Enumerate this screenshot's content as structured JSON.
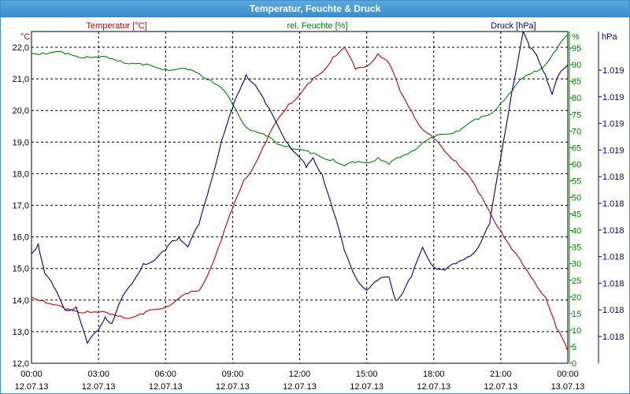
{
  "window": {
    "title": "Temperatur, Feuchte & Druck"
  },
  "chart_data": {
    "type": "line",
    "title": "Temperatur, Feuchte & Druck",
    "grid": true,
    "x_ticks": [
      {
        "time": "00:00",
        "date": "12.07.13"
      },
      {
        "time": "03:00",
        "date": "12.07.13"
      },
      {
        "time": "06:00",
        "date": "12.07.13"
      },
      {
        "time": "09:00",
        "date": "12.07.13"
      },
      {
        "time": "12:00",
        "date": "12.07.13"
      },
      {
        "time": "15:00",
        "date": "12.07.13"
      },
      {
        "time": "18:00",
        "date": "12.07.13"
      },
      {
        "time": "21:00",
        "date": "12.07.13"
      },
      {
        "time": "00:00",
        "date": "13.07.13"
      }
    ],
    "xlim": [
      0,
      24
    ],
    "axes": {
      "temperature": {
        "label": "Temperatur [°C]",
        "unit": "°C",
        "ylim": [
          12.0,
          22.5
        ],
        "ticks": [
          "12,0",
          "13,0",
          "14,0",
          "15,0",
          "16,0",
          "17,0",
          "18,0",
          "19,0",
          "20,0",
          "21,0",
          "22,0"
        ]
      },
      "humidity": {
        "label": "rel. Feuchte [%]",
        "unit": "%",
        "ylim": [
          0,
          100
        ],
        "ticks": [
          "0",
          "5",
          "10",
          "15",
          "20",
          "25",
          "30",
          "35",
          "40",
          "45",
          "50",
          "55",
          "60",
          "65",
          "70",
          "75",
          "80",
          "85",
          "90",
          "95"
        ]
      },
      "pressure": {
        "label": "Druck [hPa]",
        "unit": "hPa",
        "ticks": [
          "1.019",
          "1.019",
          "1.019",
          "1.019",
          "1.018",
          "1.018",
          "1.018",
          "1.018",
          "1.018",
          "1.018",
          "1.018"
        ]
      }
    },
    "colors": {
      "temperature": "#c00000",
      "humidity": "#008000",
      "pressure": "#00008b",
      "grid": "#000000",
      "title_bar": "#3a8ccb"
    },
    "series": [
      {
        "key": "temperature",
        "axis": "temperature",
        "x": [
          0,
          0.5,
          1,
          1.5,
          2,
          2.5,
          3,
          3.5,
          4,
          4.5,
          5,
          5.5,
          6,
          6.5,
          7,
          7.5,
          8,
          8.5,
          9,
          9.5,
          10,
          10.5,
          11,
          11.5,
          12,
          12.5,
          13,
          13.5,
          14,
          14.5,
          15,
          15.5,
          16,
          16.5,
          17,
          17.5,
          18,
          18.5,
          19,
          19.5,
          20,
          20.5,
          21,
          21.5,
          22,
          22.5,
          23,
          23.5,
          24
        ],
        "y": [
          14.1,
          14.0,
          13.85,
          13.7,
          13.65,
          13.65,
          13.6,
          13.55,
          13.5,
          13.45,
          13.55,
          13.7,
          13.8,
          14.0,
          14.2,
          14.3,
          15.0,
          15.9,
          16.9,
          17.8,
          18.3,
          19.0,
          19.7,
          20.2,
          20.5,
          20.9,
          21.2,
          21.7,
          22.0,
          21.3,
          21.4,
          21.8,
          21.5,
          20.6,
          20.0,
          19.4,
          19.1,
          18.7,
          18.4,
          18.0,
          17.4,
          16.8,
          16.2,
          15.6,
          15.1,
          14.6,
          14.1,
          13.1,
          12.4
        ]
      },
      {
        "key": "humidity",
        "axis": "humidity",
        "x": [
          0,
          0.5,
          1,
          1.5,
          2,
          2.5,
          3,
          3.5,
          4,
          4.5,
          5,
          5.5,
          6,
          6.5,
          7,
          7.5,
          8,
          8.5,
          9,
          9.5,
          10,
          10.5,
          11,
          11.5,
          12,
          12.5,
          13,
          13.5,
          14,
          14.5,
          15,
          15.5,
          16,
          16.5,
          17,
          17.5,
          18,
          18.5,
          19,
          19.5,
          20,
          20.5,
          21,
          21.5,
          22,
          22.5,
          23,
          23.5,
          24
        ],
        "y": [
          93.5,
          93.6,
          93.8,
          93.2,
          92.6,
          92.5,
          92.1,
          91.8,
          91.2,
          90.5,
          89.8,
          89.3,
          88.8,
          88.6,
          88.4,
          87.3,
          85.5,
          83.0,
          78.0,
          72.0,
          70.0,
          68.5,
          66.0,
          65.5,
          64.5,
          63.2,
          62.0,
          61.5,
          59.5,
          60.5,
          60.5,
          62.0,
          60.0,
          62.0,
          64.0,
          66.5,
          68.0,
          69.0,
          70.0,
          72.0,
          73.5,
          75.0,
          78.5,
          82.0,
          86.0,
          88.0,
          90.0,
          94.5,
          99.0
        ]
      },
      {
        "key": "pressure",
        "axis": "pressure",
        "y_unit": "axis fraction",
        "x": [
          0,
          0.3,
          0.6,
          1,
          1.5,
          2,
          2.5,
          3,
          3.3,
          3.6,
          4,
          4.5,
          5,
          5.5,
          6,
          6.3,
          6.6,
          7,
          7.5,
          8,
          8.5,
          9,
          9.3,
          9.6,
          10,
          10.5,
          11,
          11.5,
          12,
          12.3,
          12.6,
          13,
          13.5,
          14,
          14.5,
          15,
          15.5,
          16,
          16.3,
          16.6,
          17,
          17.5,
          18,
          18.5,
          19,
          19.5,
          20,
          20.5,
          21,
          21.5,
          22,
          22.3,
          22.6,
          23,
          23.3,
          23.6,
          24
        ],
        "y": [
          0.33,
          0.36,
          0.27,
          0.23,
          0.16,
          0.17,
          0.06,
          0.1,
          0.14,
          0.12,
          0.19,
          0.24,
          0.3,
          0.31,
          0.34,
          0.37,
          0.38,
          0.35,
          0.42,
          0.54,
          0.67,
          0.77,
          0.82,
          0.87,
          0.84,
          0.78,
          0.72,
          0.66,
          0.62,
          0.59,
          0.62,
          0.57,
          0.46,
          0.34,
          0.26,
          0.22,
          0.25,
          0.26,
          0.19,
          0.21,
          0.26,
          0.35,
          0.29,
          0.28,
          0.3,
          0.32,
          0.35,
          0.42,
          0.62,
          0.82,
          1.0,
          0.95,
          0.93,
          0.87,
          0.81,
          0.87,
          0.9
        ]
      }
    ]
  }
}
